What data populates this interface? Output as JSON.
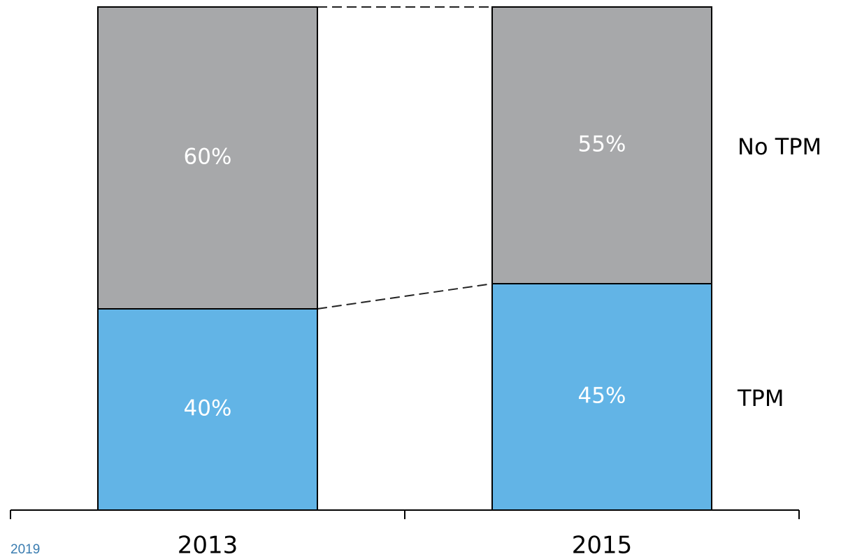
{
  "chart_data": {
    "type": "stacked_bar",
    "categories": [
      "2013",
      "2015"
    ],
    "series": [
      {
        "name": "TPM",
        "color": "#62b4e6",
        "values": [
          40,
          45
        ],
        "value_labels": [
          "40%",
          "45%"
        ]
      },
      {
        "name": "No TPM",
        "color": "#a7a8aa",
        "values": [
          60,
          55
        ],
        "value_labels": [
          "60%",
          "55%"
        ]
      }
    ],
    "ylim": [
      0,
      100
    ],
    "annotations": [
      "2019"
    ]
  }
}
